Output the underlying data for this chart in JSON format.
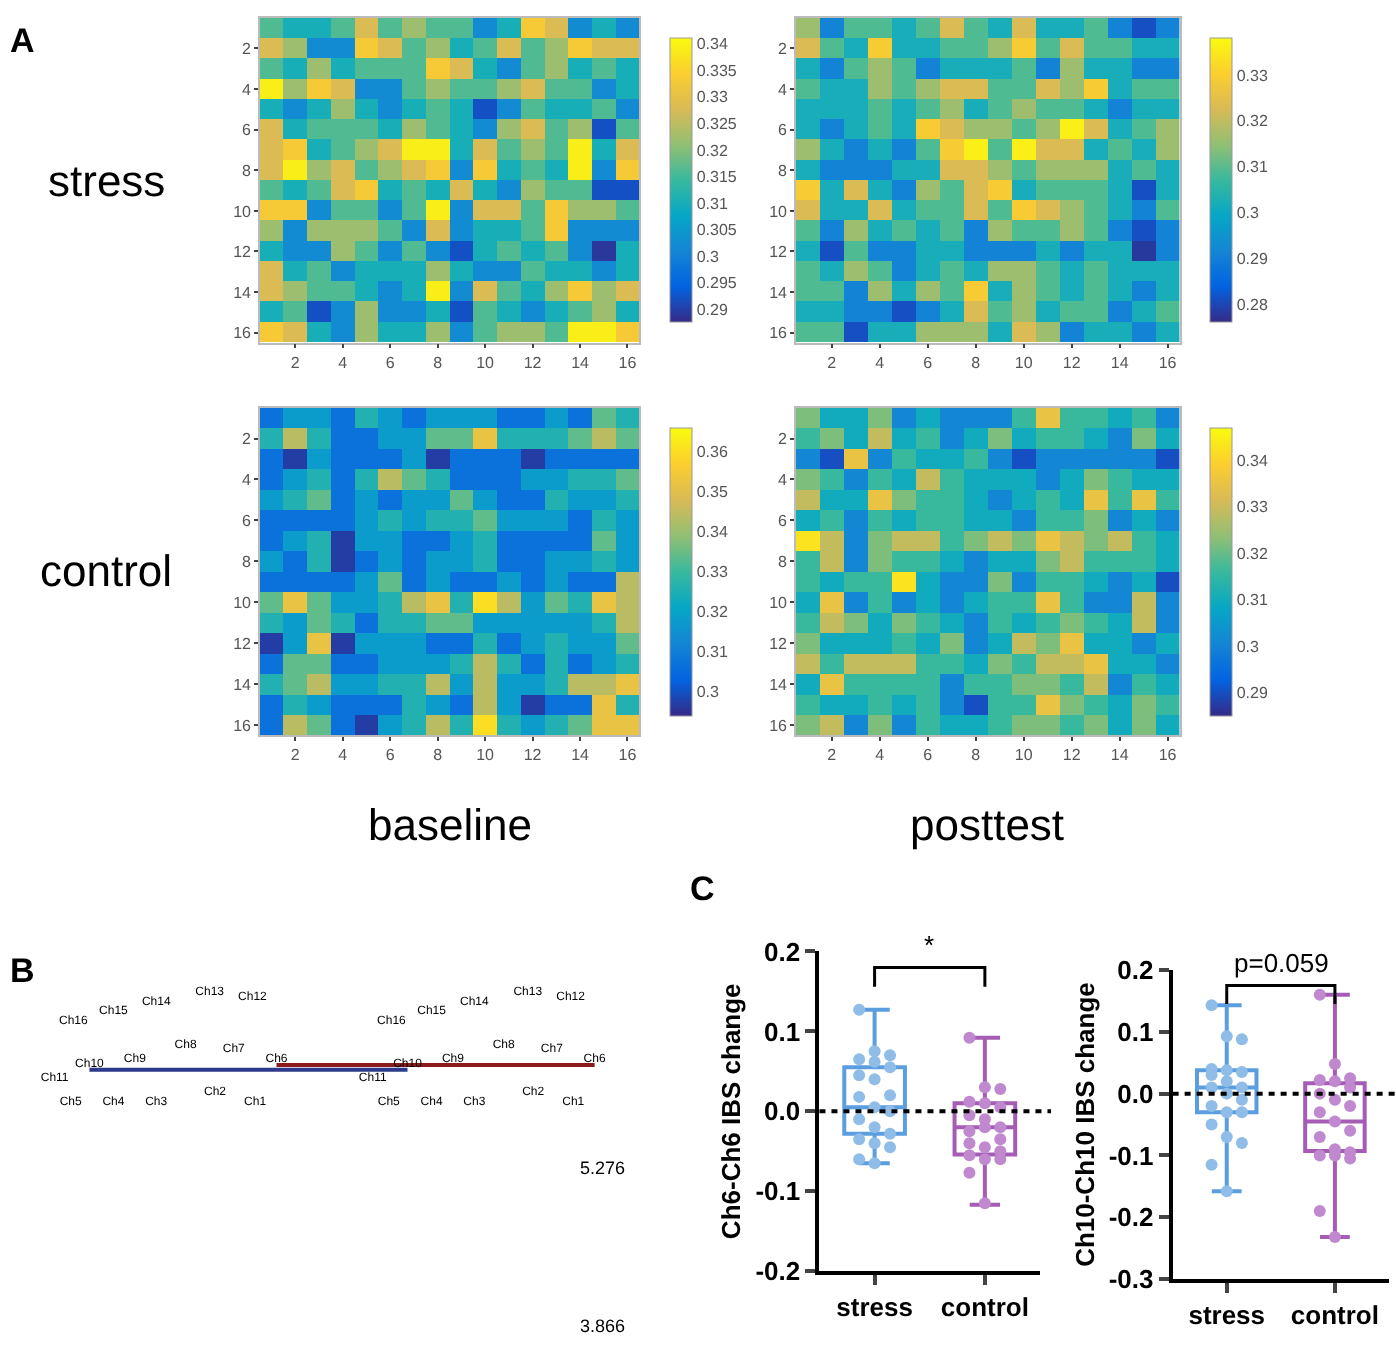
{
  "chart_data": [
    {
      "type": "heatmap",
      "title": "A",
      "ylabel": "stress",
      "categories": [
        null,
        "2",
        null,
        "4",
        null,
        "6",
        null,
        "8",
        null,
        "10",
        null,
        "12",
        null,
        "14",
        null,
        "16"
      ],
      "y_categories": [
        null,
        "2",
        null,
        "4",
        null,
        "6",
        null,
        "8",
        null,
        "10",
        null,
        "12",
        null,
        "14",
        null,
        "16"
      ],
      "clim": [
        0.2875,
        0.341
      ],
      "cticks": [
        0.29,
        0.295,
        0.3,
        0.305,
        0.31,
        0.315,
        0.32,
        0.325,
        0.33,
        0.335,
        0.34
      ],
      "cells": [
        [
          0.316,
          0.31,
          0.31,
          0.316,
          0.328,
          0.316,
          0.322,
          0.316,
          0.316,
          0.302,
          0.31,
          0.333,
          0.328,
          0.302,
          0.31,
          0.302
        ],
        [
          0.328,
          0.322,
          0.302,
          0.302,
          0.333,
          0.328,
          0.316,
          0.322,
          0.31,
          0.316,
          0.328,
          0.316,
          0.322,
          0.333,
          0.328,
          0.328
        ],
        [
          0.316,
          0.31,
          0.322,
          0.31,
          0.316,
          0.316,
          0.316,
          0.333,
          0.328,
          0.31,
          0.302,
          0.316,
          0.322,
          0.31,
          0.316,
          0.31
        ],
        [
          0.339,
          0.322,
          0.333,
          0.328,
          0.302,
          0.302,
          0.316,
          0.322,
          0.316,
          0.316,
          0.322,
          0.328,
          0.316,
          0.316,
          0.302,
          0.31
        ],
        [
          0.31,
          0.302,
          0.31,
          0.322,
          0.31,
          0.302,
          0.31,
          0.316,
          0.31,
          0.292,
          0.302,
          0.316,
          0.31,
          0.31,
          0.316,
          0.302
        ],
        [
          0.328,
          0.31,
          0.316,
          0.316,
          0.316,
          0.31,
          0.322,
          0.316,
          0.31,
          0.302,
          0.322,
          0.328,
          0.316,
          0.322,
          0.292,
          0.316
        ],
        [
          0.328,
          0.333,
          0.31,
          0.316,
          0.322,
          0.328,
          0.339,
          0.339,
          0.31,
          0.328,
          0.316,
          0.322,
          0.316,
          0.339,
          0.31,
          0.328
        ],
        [
          0.328,
          0.339,
          0.322,
          0.328,
          0.316,
          0.322,
          0.328,
          0.333,
          0.302,
          0.333,
          0.31,
          0.316,
          0.31,
          0.339,
          0.302,
          0.333
        ],
        [
          0.316,
          0.31,
          0.316,
          0.328,
          0.333,
          0.31,
          0.316,
          0.31,
          0.328,
          0.31,
          0.302,
          0.322,
          0.316,
          0.316,
          0.292,
          0.292
        ],
        [
          0.333,
          0.333,
          0.302,
          0.316,
          0.316,
          0.302,
          0.316,
          0.339,
          0.302,
          0.328,
          0.328,
          0.316,
          0.333,
          0.322,
          0.322,
          0.316
        ],
        [
          0.322,
          0.302,
          0.322,
          0.322,
          0.322,
          0.316,
          0.302,
          0.328,
          0.302,
          0.31,
          0.31,
          0.316,
          0.333,
          0.302,
          0.302,
          0.302
        ],
        [
          0.31,
          0.302,
          0.302,
          0.322,
          0.316,
          0.302,
          0.316,
          0.302,
          0.292,
          0.31,
          0.316,
          0.31,
          0.316,
          0.302,
          0.289,
          0.31
        ],
        [
          0.328,
          0.31,
          0.316,
          0.302,
          0.31,
          0.31,
          0.31,
          0.322,
          0.31,
          0.302,
          0.302,
          0.316,
          0.31,
          0.31,
          0.302,
          0.31
        ],
        [
          0.328,
          0.322,
          0.316,
          0.316,
          0.31,
          0.302,
          0.31,
          0.339,
          0.302,
          0.328,
          0.316,
          0.31,
          0.322,
          0.333,
          0.322,
          0.328
        ],
        [
          0.31,
          0.316,
          0.292,
          0.302,
          0.322,
          0.302,
          0.302,
          0.31,
          0.292,
          0.316,
          0.31,
          0.302,
          0.31,
          0.316,
          0.322,
          0.31
        ],
        [
          0.333,
          0.328,
          0.31,
          0.302,
          0.322,
          0.31,
          0.31,
          0.322,
          0.302,
          0.316,
          0.322,
          0.322,
          0.316,
          0.339,
          0.339,
          0.333
        ]
      ]
    },
    {
      "type": "heatmap",
      "categories": [
        null,
        "2",
        null,
        "4",
        null,
        "6",
        null,
        "8",
        null,
        "10",
        null,
        "12",
        null,
        "14",
        null,
        "16"
      ],
      "y_categories": [
        null,
        "2",
        null,
        "4",
        null,
        "6",
        null,
        "8",
        null,
        "10",
        null,
        "12",
        null,
        "14",
        null,
        "16"
      ],
      "clim": [
        0.276,
        0.338
      ],
      "cticks": [
        0.28,
        0.29,
        0.3,
        0.31,
        0.32,
        0.33
      ],
      "cells": [
        [
          0.316,
          0.291,
          0.309,
          0.309,
          0.302,
          0.309,
          0.323,
          0.309,
          0.302,
          0.323,
          0.302,
          0.302,
          0.309,
          0.291,
          0.281,
          0.291
        ],
        [
          0.323,
          0.309,
          0.302,
          0.329,
          0.302,
          0.302,
          0.309,
          0.309,
          0.316,
          0.329,
          0.309,
          0.323,
          0.309,
          0.309,
          0.302,
          0.302
        ],
        [
          0.302,
          0.291,
          0.309,
          0.316,
          0.309,
          0.291,
          0.302,
          0.302,
          0.302,
          0.309,
          0.291,
          0.316,
          0.302,
          0.302,
          0.291,
          0.291
        ],
        [
          0.309,
          0.302,
          0.302,
          0.316,
          0.309,
          0.316,
          0.323,
          0.323,
          0.309,
          0.309,
          0.323,
          0.316,
          0.329,
          0.302,
          0.309,
          0.309
        ],
        [
          0.302,
          0.302,
          0.302,
          0.309,
          0.302,
          0.309,
          0.316,
          0.302,
          0.309,
          0.316,
          0.309,
          0.309,
          0.302,
          0.291,
          0.302,
          0.302
        ],
        [
          0.302,
          0.291,
          0.302,
          0.309,
          0.302,
          0.329,
          0.323,
          0.316,
          0.316,
          0.309,
          0.316,
          0.336,
          0.323,
          0.302,
          0.309,
          0.316
        ],
        [
          0.316,
          0.302,
          0.291,
          0.302,
          0.291,
          0.309,
          0.329,
          0.336,
          0.309,
          0.336,
          0.323,
          0.323,
          0.302,
          0.309,
          0.302,
          0.316
        ],
        [
          0.302,
          0.291,
          0.291,
          0.291,
          0.302,
          0.302,
          0.323,
          0.323,
          0.316,
          0.309,
          0.316,
          0.316,
          0.316,
          0.302,
          0.309,
          0.302
        ],
        [
          0.329,
          0.302,
          0.323,
          0.302,
          0.291,
          0.316,
          0.309,
          0.323,
          0.329,
          0.302,
          0.309,
          0.309,
          0.309,
          0.302,
          0.281,
          0.302
        ],
        [
          0.323,
          0.302,
          0.302,
          0.323,
          0.302,
          0.309,
          0.309,
          0.323,
          0.309,
          0.329,
          0.323,
          0.316,
          0.309,
          0.302,
          0.291,
          0.309
        ],
        [
          0.309,
          0.291,
          0.316,
          0.302,
          0.309,
          0.302,
          0.309,
          0.291,
          0.316,
          0.309,
          0.309,
          0.316,
          0.309,
          0.291,
          0.281,
          0.291
        ],
        [
          0.302,
          0.281,
          0.309,
          0.291,
          0.291,
          0.302,
          0.302,
          0.291,
          0.291,
          0.291,
          0.302,
          0.291,
          0.302,
          0.302,
          0.278,
          0.291
        ],
        [
          0.309,
          0.302,
          0.316,
          0.309,
          0.291,
          0.302,
          0.309,
          0.302,
          0.316,
          0.316,
          0.309,
          0.302,
          0.309,
          0.302,
          0.302,
          0.302
        ],
        [
          0.309,
          0.309,
          0.291,
          0.316,
          0.302,
          0.316,
          0.309,
          0.329,
          0.302,
          0.316,
          0.309,
          0.302,
          0.309,
          0.302,
          0.291,
          0.302
        ],
        [
          0.302,
          0.302,
          0.291,
          0.291,
          0.281,
          0.291,
          0.302,
          0.323,
          0.309,
          0.316,
          0.302,
          0.309,
          0.309,
          0.291,
          0.302,
          0.309
        ],
        [
          0.309,
          0.309,
          0.281,
          0.302,
          0.302,
          0.316,
          0.316,
          0.316,
          0.302,
          0.323,
          0.316,
          0.291,
          0.302,
          0.302,
          0.291,
          0.302
        ]
      ]
    },
    {
      "type": "heatmap",
      "ylabel": "control",
      "xlabel": "baseline",
      "categories": [
        null,
        "2",
        null,
        "4",
        null,
        "6",
        null,
        "8",
        null,
        "10",
        null,
        "12",
        null,
        "14",
        null,
        "16"
      ],
      "y_categories": [
        null,
        "2",
        null,
        "4",
        null,
        "6",
        null,
        "8",
        null,
        "10",
        null,
        "12",
        null,
        "14",
        null,
        "16"
      ],
      "clim": [
        0.294,
        0.366
      ],
      "cticks": [
        0.3,
        0.31,
        0.32,
        0.33,
        0.34,
        0.35,
        0.36
      ],
      "cells": [
        [
          0.307,
          0.318,
          0.318,
          0.307,
          0.326,
          0.318,
          0.307,
          0.318,
          0.318,
          0.318,
          0.307,
          0.307,
          0.318,
          0.307,
          0.334,
          0.326
        ],
        [
          0.326,
          0.344,
          0.326,
          0.307,
          0.307,
          0.318,
          0.318,
          0.334,
          0.334,
          0.352,
          0.326,
          0.326,
          0.326,
          0.334,
          0.344,
          0.334
        ],
        [
          0.307,
          0.297,
          0.318,
          0.307,
          0.307,
          0.307,
          0.318,
          0.297,
          0.307,
          0.307,
          0.307,
          0.297,
          0.307,
          0.307,
          0.307,
          0.307
        ],
        [
          0.307,
          0.318,
          0.326,
          0.307,
          0.326,
          0.344,
          0.334,
          0.326,
          0.307,
          0.307,
          0.307,
          0.318,
          0.318,
          0.326,
          0.326,
          0.334
        ],
        [
          0.318,
          0.326,
          0.334,
          0.307,
          0.318,
          0.307,
          0.318,
          0.318,
          0.334,
          0.318,
          0.307,
          0.307,
          0.326,
          0.318,
          0.318,
          0.326
        ],
        [
          0.307,
          0.307,
          0.307,
          0.307,
          0.318,
          0.326,
          0.318,
          0.326,
          0.326,
          0.334,
          0.318,
          0.318,
          0.318,
          0.307,
          0.326,
          0.318
        ],
        [
          0.307,
          0.318,
          0.326,
          0.297,
          0.318,
          0.318,
          0.307,
          0.307,
          0.318,
          0.326,
          0.307,
          0.307,
          0.307,
          0.307,
          0.334,
          0.318
        ],
        [
          0.318,
          0.307,
          0.326,
          0.297,
          0.307,
          0.318,
          0.307,
          0.318,
          0.318,
          0.326,
          0.307,
          0.307,
          0.318,
          0.318,
          0.326,
          0.318
        ],
        [
          0.307,
          0.307,
          0.307,
          0.307,
          0.318,
          0.334,
          0.307,
          0.318,
          0.307,
          0.307,
          0.318,
          0.307,
          0.318,
          0.307,
          0.307,
          0.344
        ],
        [
          0.334,
          0.352,
          0.334,
          0.318,
          0.318,
          0.326,
          0.344,
          0.352,
          0.326,
          0.36,
          0.344,
          0.318,
          0.334,
          0.326,
          0.352,
          0.344
        ],
        [
          0.326,
          0.318,
          0.334,
          0.326,
          0.307,
          0.326,
          0.326,
          0.334,
          0.334,
          0.318,
          0.318,
          0.318,
          0.318,
          0.318,
          0.326,
          0.344
        ],
        [
          0.297,
          0.318,
          0.352,
          0.297,
          0.318,
          0.318,
          0.318,
          0.307,
          0.307,
          0.326,
          0.307,
          0.318,
          0.326,
          0.318,
          0.318,
          0.334
        ],
        [
          0.307,
          0.334,
          0.334,
          0.307,
          0.307,
          0.318,
          0.318,
          0.318,
          0.326,
          0.344,
          0.326,
          0.307,
          0.326,
          0.307,
          0.318,
          0.326
        ],
        [
          0.326,
          0.334,
          0.344,
          0.318,
          0.318,
          0.326,
          0.326,
          0.344,
          0.318,
          0.344,
          0.318,
          0.318,
          0.326,
          0.344,
          0.344,
          0.352
        ],
        [
          0.307,
          0.326,
          0.318,
          0.307,
          0.307,
          0.307,
          0.326,
          0.318,
          0.307,
          0.344,
          0.318,
          0.297,
          0.307,
          0.307,
          0.352,
          0.326
        ],
        [
          0.307,
          0.344,
          0.334,
          0.307,
          0.297,
          0.318,
          0.326,
          0.344,
          0.326,
          0.36,
          0.326,
          0.318,
          0.326,
          0.334,
          0.352,
          0.352
        ]
      ]
    },
    {
      "type": "heatmap",
      "xlabel": "posttest",
      "categories": [
        null,
        "2",
        null,
        "4",
        null,
        "6",
        null,
        "8",
        null,
        "10",
        null,
        "12",
        null,
        "14",
        null,
        "16"
      ],
      "y_categories": [
        null,
        "2",
        null,
        "4",
        null,
        "6",
        null,
        "8",
        null,
        "10",
        null,
        "12",
        null,
        "14",
        null,
        "16"
      ],
      "clim": [
        0.285,
        0.347
      ],
      "cticks": [
        0.29,
        0.3,
        0.31,
        0.32,
        0.33,
        0.34
      ],
      "cells": [
        [
          0.322,
          0.31,
          0.31,
          0.322,
          0.301,
          0.31,
          0.301,
          0.301,
          0.301,
          0.316,
          0.335,
          0.316,
          0.316,
          0.31,
          0.316,
          0.301
        ],
        [
          0.316,
          0.322,
          0.31,
          0.329,
          0.31,
          0.316,
          0.301,
          0.31,
          0.322,
          0.31,
          0.316,
          0.316,
          0.31,
          0.301,
          0.322,
          0.31
        ],
        [
          0.301,
          0.29,
          0.335,
          0.301,
          0.316,
          0.31,
          0.31,
          0.316,
          0.301,
          0.29,
          0.301,
          0.301,
          0.301,
          0.301,
          0.301,
          0.29
        ],
        [
          0.322,
          0.316,
          0.301,
          0.316,
          0.31,
          0.329,
          0.316,
          0.31,
          0.31,
          0.31,
          0.301,
          0.31,
          0.322,
          0.316,
          0.31,
          0.31
        ],
        [
          0.329,
          0.31,
          0.31,
          0.335,
          0.322,
          0.316,
          0.316,
          0.31,
          0.301,
          0.31,
          0.316,
          0.31,
          0.335,
          0.316,
          0.335,
          0.316
        ],
        [
          0.31,
          0.316,
          0.301,
          0.316,
          0.31,
          0.316,
          0.316,
          0.31,
          0.31,
          0.301,
          0.316,
          0.316,
          0.322,
          0.301,
          0.31,
          0.301
        ],
        [
          0.343,
          0.329,
          0.301,
          0.322,
          0.329,
          0.329,
          0.316,
          0.322,
          0.329,
          0.322,
          0.335,
          0.329,
          0.322,
          0.329,
          0.316,
          0.31
        ],
        [
          0.316,
          0.329,
          0.301,
          0.322,
          0.316,
          0.316,
          0.31,
          0.301,
          0.31,
          0.31,
          0.322,
          0.329,
          0.316,
          0.316,
          0.316,
          0.31
        ],
        [
          0.316,
          0.31,
          0.316,
          0.316,
          0.343,
          0.31,
          0.301,
          0.301,
          0.322,
          0.301,
          0.316,
          0.316,
          0.31,
          0.301,
          0.31,
          0.29
        ],
        [
          0.31,
          0.335,
          0.301,
          0.316,
          0.301,
          0.31,
          0.301,
          0.31,
          0.316,
          0.316,
          0.335,
          0.316,
          0.301,
          0.301,
          0.329,
          0.301
        ],
        [
          0.316,
          0.329,
          0.322,
          0.31,
          0.322,
          0.316,
          0.31,
          0.301,
          0.316,
          0.31,
          0.316,
          0.322,
          0.316,
          0.31,
          0.329,
          0.301
        ],
        [
          0.322,
          0.31,
          0.31,
          0.31,
          0.316,
          0.31,
          0.322,
          0.301,
          0.31,
          0.329,
          0.322,
          0.335,
          0.31,
          0.31,
          0.301,
          0.31
        ],
        [
          0.329,
          0.316,
          0.329,
          0.329,
          0.329,
          0.316,
          0.316,
          0.31,
          0.322,
          0.316,
          0.329,
          0.329,
          0.335,
          0.31,
          0.31,
          0.301
        ],
        [
          0.31,
          0.335,
          0.316,
          0.316,
          0.316,
          0.316,
          0.301,
          0.316,
          0.316,
          0.322,
          0.322,
          0.316,
          0.329,
          0.301,
          0.316,
          0.31
        ],
        [
          0.316,
          0.31,
          0.31,
          0.316,
          0.31,
          0.316,
          0.301,
          0.29,
          0.316,
          0.316,
          0.335,
          0.322,
          0.316,
          0.31,
          0.322,
          0.316
        ],
        [
          0.322,
          0.329,
          0.301,
          0.322,
          0.301,
          0.316,
          0.31,
          0.31,
          0.316,
          0.322,
          0.322,
          0.316,
          0.322,
          0.31,
          0.322,
          0.31
        ]
      ]
    },
    {
      "type": "other",
      "title": "B",
      "categories": [
        "Ch1",
        "Ch2",
        "Ch3",
        "Ch4",
        "Ch5",
        "Ch6",
        "Ch7",
        "Ch8",
        "Ch9",
        "Ch10",
        "Ch11",
        "Ch12",
        "Ch13",
        "Ch14",
        "Ch15",
        "Ch16"
      ],
      "annotations": [
        "5.276",
        "3.866"
      ],
      "colors": [
        "#8b1a1a",
        "#2d3a8c"
      ]
    },
    {
      "type": "box",
      "title": "C",
      "ylabel": "Ch6-Ch6 IBS change",
      "categories": [
        "stress",
        "control"
      ],
      "colors": [
        "#5b9ee0",
        "#a55cb5"
      ],
      "boxes": [
        {
          "low": -0.065,
          "q1": -0.028,
          "median": 0.005,
          "q3": 0.055,
          "high": 0.127
        },
        {
          "low": -0.117,
          "q1": -0.054,
          "median": -0.02,
          "q3": 0.01,
          "high": 0.092
        }
      ],
      "series": [
        {
          "type": "scatter",
          "color": "#8fbde8",
          "x": [
            "stress",
            "stress",
            "stress",
            "stress",
            "stress",
            "stress",
            "stress",
            "stress",
            "stress",
            "stress",
            "stress",
            "stress",
            "stress",
            "stress",
            "stress",
            "stress",
            "stress",
            "stress",
            "stress",
            "stress"
          ],
          "values": [
            0.127,
            0.075,
            0.07,
            0.065,
            0.062,
            0.055,
            0.045,
            0.04,
            0.02,
            0.018,
            0.005,
            0.0,
            -0.01,
            -0.02,
            -0.028,
            -0.035,
            -0.04,
            -0.045,
            -0.06,
            -0.065
          ]
        },
        {
          "type": "scatter",
          "color": "#c089cf",
          "x": [
            "control",
            "control",
            "control",
            "control",
            "control",
            "control",
            "control",
            "control",
            "control",
            "control",
            "control",
            "control",
            "control",
            "control",
            "control",
            "control",
            "control",
            "control",
            "control",
            "control"
          ],
          "values": [
            0.092,
            0.03,
            0.028,
            0.012,
            0.01,
            0.005,
            -0.005,
            -0.01,
            -0.02,
            -0.025,
            -0.02,
            -0.035,
            -0.04,
            -0.045,
            -0.05,
            -0.055,
            -0.06,
            -0.06,
            -0.077,
            -0.115
          ]
        }
      ],
      "ylim": [
        -0.2,
        0.2
      ],
      "yticks": [
        -0.2,
        -0.1,
        {
          "value": 0,
          "label": "0.0"
        },
        0.1,
        0.2
      ],
      "ref_lines": [
        {
          "axis": "y",
          "value": 0,
          "line_style": "dotted",
          "color": "#000000"
        }
      ],
      "annotations": [
        "*"
      ]
    },
    {
      "type": "box",
      "ylabel": "Ch10-Ch10 IBS change",
      "categories": [
        "stress",
        "control"
      ],
      "colors": [
        "#5b9ee0",
        "#a55cb5"
      ],
      "boxes": [
        {
          "low": -0.158,
          "q1": -0.03,
          "median": 0.01,
          "q3": 0.038,
          "high": 0.143
        },
        {
          "low": -0.232,
          "q1": -0.093,
          "median": -0.045,
          "q3": 0.017,
          "high": 0.16
        }
      ],
      "series": [
        {
          "type": "scatter",
          "color": "#8fbde8",
          "x": [
            "stress",
            "stress",
            "stress",
            "stress",
            "stress",
            "stress",
            "stress",
            "stress",
            "stress",
            "stress",
            "stress",
            "stress",
            "stress",
            "stress",
            "stress",
            "stress",
            "stress",
            "stress",
            "stress",
            "stress"
          ],
          "values": [
            0.143,
            0.093,
            0.088,
            0.04,
            0.038,
            0.035,
            0.03,
            0.02,
            0.01,
            0.01,
            0.0,
            -0.01,
            -0.02,
            -0.03,
            -0.03,
            -0.05,
            -0.07,
            -0.08,
            -0.115,
            -0.158
          ]
        },
        {
          "type": "scatter",
          "color": "#c089cf",
          "x": [
            "control",
            "control",
            "control",
            "control",
            "control",
            "control",
            "control",
            "control",
            "control",
            "control",
            "control",
            "control",
            "control",
            "control",
            "control",
            "control",
            "control",
            "control",
            "control",
            "control"
          ],
          "values": [
            0.16,
            0.048,
            0.025,
            0.022,
            0.02,
            0.01,
            0.0,
            -0.01,
            -0.02,
            -0.03,
            -0.045,
            -0.06,
            -0.07,
            -0.09,
            -0.095,
            -0.1,
            -0.1,
            -0.105,
            -0.19,
            -0.232
          ]
        }
      ],
      "ylim": [
        -0.3,
        0.2
      ],
      "yticks": [
        -0.3,
        -0.2,
        -0.1,
        {
          "value": 0,
          "label": "0.0"
        },
        0.1,
        0.2
      ],
      "ref_lines": [
        {
          "axis": "y",
          "value": 0,
          "line_style": "dotted",
          "color": "#000000"
        }
      ],
      "annotations": [
        "p=0.059"
      ]
    }
  ]
}
